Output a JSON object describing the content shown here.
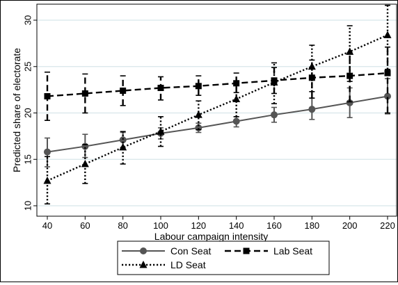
{
  "chart_data": {
    "type": "line",
    "title": "",
    "xlabel": "Labour  campaign intensity",
    "ylabel": "Predicted  share of electorate",
    "x": [
      40,
      60,
      80,
      100,
      120,
      140,
      160,
      180,
      200,
      220
    ],
    "xlim": [
      40,
      220
    ],
    "ylim": [
      10,
      31.5
    ],
    "xticks": [
      "40",
      "60",
      "80",
      "100",
      "120",
      "140",
      "160",
      "180",
      "200",
      "220"
    ],
    "yticks": [
      "10",
      "15",
      "20",
      "25",
      "30"
    ],
    "grid": true,
    "legend_position": "bottom",
    "series": [
      {
        "name": "Con Seat",
        "color": "#555555",
        "line_style": "solid",
        "marker": "circle",
        "values": [
          15.8,
          16.4,
          17.1,
          17.8,
          18.4,
          19.1,
          19.8,
          20.4,
          21.1,
          21.8
        ],
        "ci_low": [
          14.2,
          15.2,
          16.3,
          17.2,
          17.9,
          18.5,
          19.0,
          19.3,
          19.5,
          19.9
        ],
        "ci_high": [
          17.3,
          17.7,
          17.9,
          18.4,
          18.9,
          19.6,
          20.6,
          21.6,
          22.7,
          23.7
        ]
      },
      {
        "name": "Lab Seat",
        "color": "#000000",
        "line_style": "dashed",
        "marker": "square",
        "values": [
          21.8,
          22.1,
          22.4,
          22.7,
          22.9,
          23.2,
          23.5,
          23.8,
          24.0,
          24.3
        ],
        "ci_low": [
          19.2,
          20.0,
          20.8,
          21.4,
          21.9,
          22.2,
          22.1,
          21.6,
          21.2,
          20.0
        ],
        "ci_high": [
          24.4,
          24.2,
          24.0,
          23.9,
          24.0,
          24.3,
          24.9,
          25.7,
          26.5,
          27.1
        ]
      },
      {
        "name": "LD Seat",
        "color": "#000000",
        "line_style": "dotted",
        "marker": "triangle",
        "values": [
          12.7,
          14.5,
          16.3,
          18.0,
          19.8,
          21.5,
          23.3,
          25.0,
          26.6,
          28.4
        ],
        "ci_low": [
          10.2,
          12.4,
          14.5,
          16.4,
          18.2,
          19.6,
          21.0,
          22.3,
          23.4,
          24.7
        ],
        "ci_high": [
          15.3,
          16.6,
          18.0,
          19.6,
          21.3,
          23.2,
          25.4,
          27.3,
          29.4,
          31.6
        ]
      }
    ]
  }
}
